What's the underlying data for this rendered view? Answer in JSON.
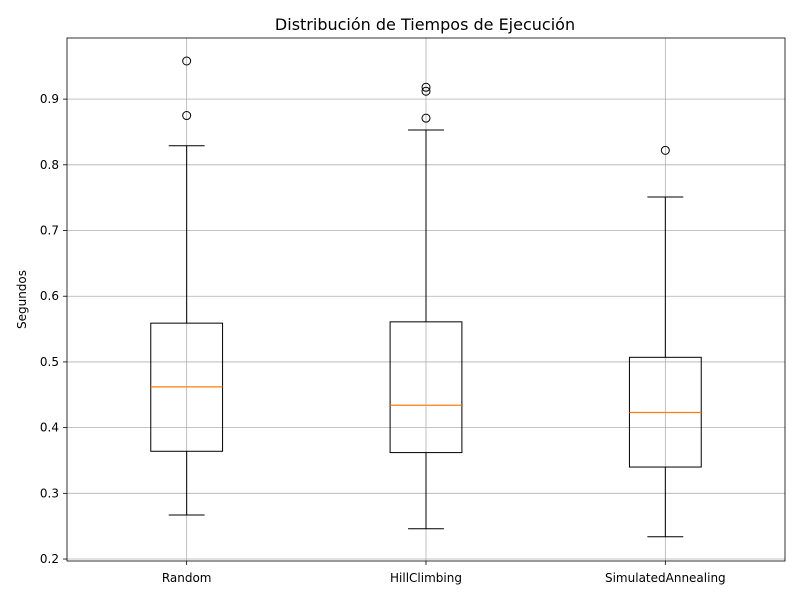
{
  "chart_data": {
    "type": "boxplot",
    "title": "Distribución de Tiempos de Ejecución",
    "xlabel": "",
    "ylabel": "Segundos",
    "ylim": [
      0.197,
      0.993
    ],
    "yticks": [
      0.2,
      0.3,
      0.4,
      0.5,
      0.6,
      0.7,
      0.8,
      0.9
    ],
    "ytick_labels": [
      "0.2",
      "0.3",
      "0.4",
      "0.5",
      "0.6",
      "0.7",
      "0.8",
      "0.9"
    ],
    "grid": true,
    "median_color": "#ff7f0e",
    "box_color": "#000000",
    "categories": [
      "Random",
      "HillClimbing",
      "SimulatedAnnealing"
    ],
    "boxes": [
      {
        "label": "Random",
        "whisker_low": 0.267,
        "q1": 0.364,
        "median": 0.462,
        "q3": 0.559,
        "whisker_high": 0.829,
        "fliers": [
          0.875,
          0.958
        ]
      },
      {
        "label": "HillClimbing",
        "whisker_low": 0.246,
        "q1": 0.362,
        "median": 0.434,
        "q3": 0.561,
        "whisker_high": 0.853,
        "fliers": [
          0.871,
          0.912,
          0.918
        ]
      },
      {
        "label": "SimulatedAnnealing",
        "whisker_low": 0.234,
        "q1": 0.34,
        "median": 0.423,
        "q3": 0.507,
        "whisker_high": 0.751,
        "fliers": [
          0.822
        ]
      }
    ]
  }
}
